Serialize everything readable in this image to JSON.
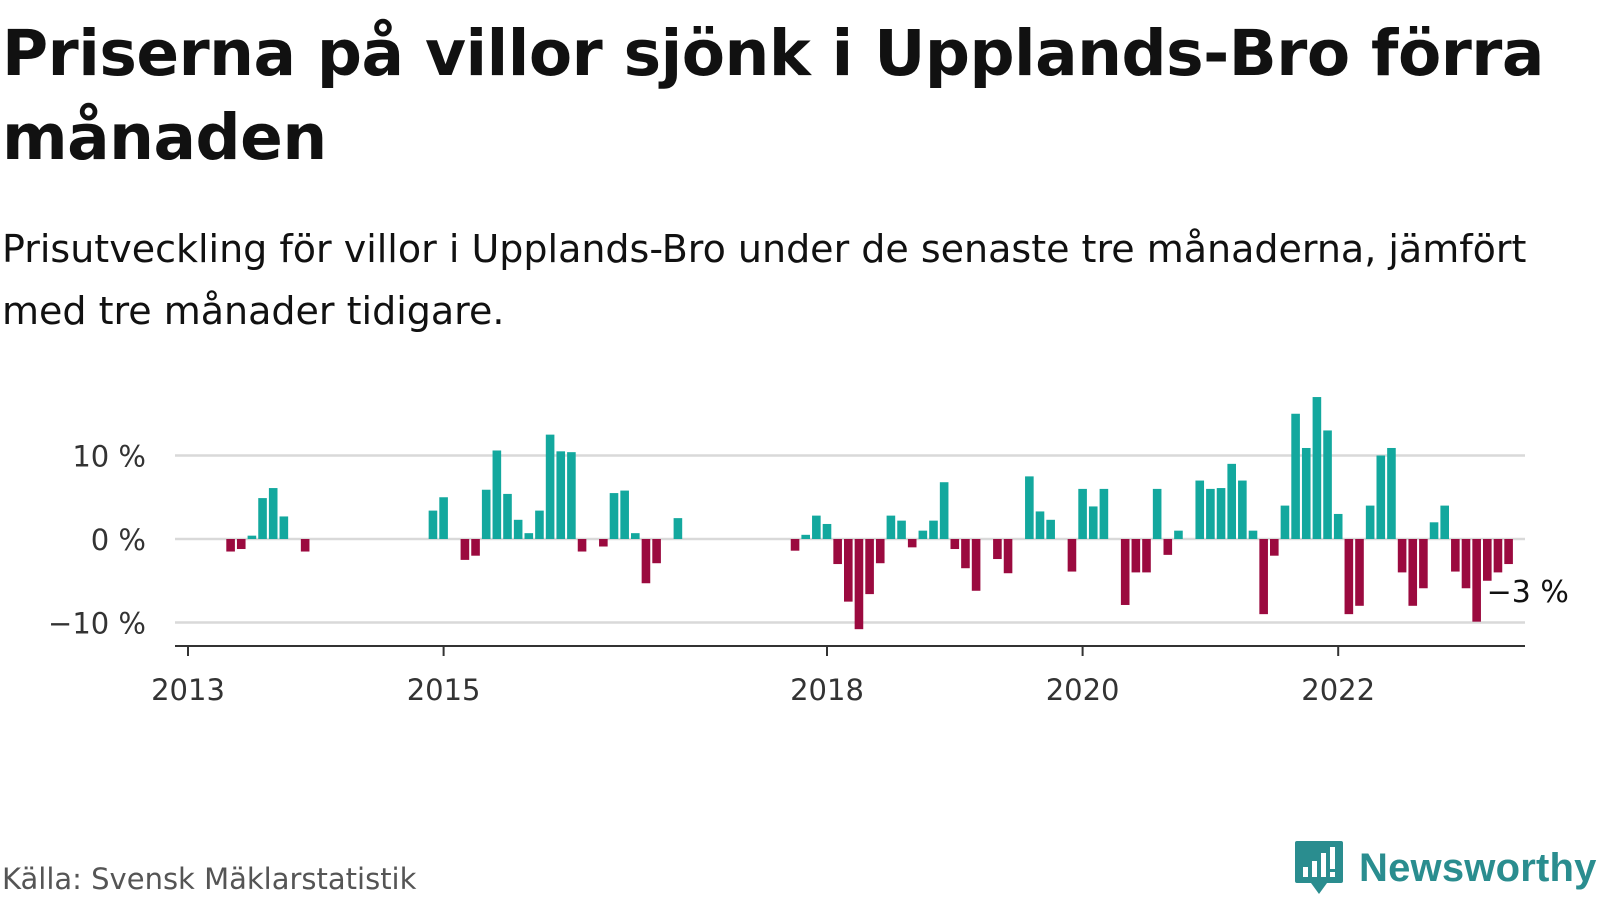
{
  "header": {
    "title": "Priserna på villor sjönk i Upplands-Bro förra månaden",
    "subtitle": "Prisutveckling för villor i Upplands-Bro under de senaste tre månaderna, jämfört med tre månader tidigare."
  },
  "footer": {
    "source": "Källa: Svensk Mäklarstatistik",
    "brand": "Newsworthy"
  },
  "colors": {
    "positive": "#13a89e",
    "negative": "#9b0a3f",
    "gridline": "#d9d9d9",
    "axis": "#333333",
    "brand": "#2a8d8f"
  },
  "chart_data": {
    "type": "bar",
    "start": "2013-01",
    "y_tick_labels": [
      "10 %",
      "0 %",
      "−10 %"
    ],
    "y_ticks": [
      10,
      0,
      -10
    ],
    "x_tick_labels": [
      "2013",
      "2015",
      "2018",
      "2020",
      "2022"
    ],
    "x_ticks": [
      "2013-01",
      "2015-01",
      "2018-01",
      "2020-01",
      "2022-01"
    ],
    "ylim": [
      -12.5,
      17.5
    ],
    "grid": true,
    "last_value_label": "−3 %",
    "values": [
      null,
      null,
      null,
      null,
      -1.5,
      -1.2,
      0.4,
      4.9,
      6.1,
      2.7,
      null,
      -1.5,
      null,
      null,
      null,
      null,
      null,
      null,
      null,
      null,
      null,
      null,
      null,
      3.4,
      5.0,
      null,
      -2.5,
      -2.0,
      5.9,
      10.6,
      5.4,
      2.3,
      0.7,
      3.4,
      12.5,
      10.5,
      10.4,
      -1.5,
      null,
      -0.9,
      5.5,
      5.8,
      0.7,
      -5.3,
      -2.9,
      null,
      2.5,
      null,
      null,
      null,
      null,
      null,
      null,
      null,
      null,
      null,
      null,
      -1.4,
      0.5,
      2.8,
      1.8,
      -3.0,
      -7.5,
      -10.8,
      -6.6,
      -2.9,
      2.8,
      2.2,
      -1.0,
      1.0,
      2.2,
      6.8,
      -1.2,
      -3.5,
      -6.2,
      null,
      -2.4,
      -4.1,
      null,
      7.5,
      3.3,
      2.3,
      null,
      -3.9,
      6.0,
      3.9,
      6.0,
      null,
      -7.9,
      -4.0,
      -4.0,
      6.0,
      -1.9,
      1.0,
      null,
      7.0,
      6.0,
      6.1,
      9.0,
      7.0,
      1.0,
      -9.0,
      -2.0,
      4.0,
      15.0,
      10.9,
      17.0,
      13.0,
      3.0,
      -9.0,
      -8.0,
      4.0,
      10.0,
      10.9,
      -4.0,
      -8.0,
      -5.9,
      2.0,
      4.0,
      -3.9,
      -5.9,
      -9.9,
      -5.0,
      -4.0,
      -3.0
    ]
  }
}
